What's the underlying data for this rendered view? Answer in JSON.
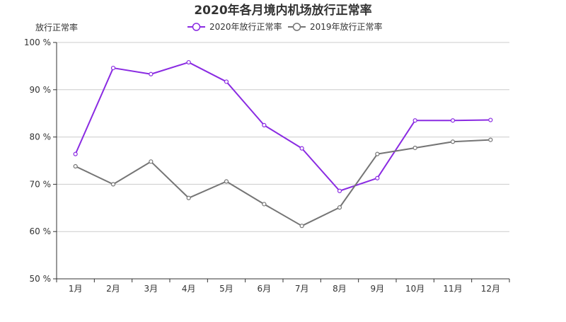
{
  "chart_data": {
    "type": "line",
    "title": "2020年各月境内机场放行正常率",
    "ylabel": "放行正常率",
    "xlabel": "",
    "categories": [
      "1月",
      "2月",
      "3月",
      "4月",
      "5月",
      "6月",
      "7月",
      "8月",
      "9月",
      "10月",
      "11月",
      "12月"
    ],
    "ylim": [
      50,
      100
    ],
    "yticks": [
      50,
      60,
      70,
      80,
      90,
      100
    ],
    "ytick_labels": [
      "50 %",
      "60 %",
      "70 %",
      "80 %",
      "90 %",
      "100 %"
    ],
    "grid": true,
    "legend_position": "top-center",
    "series": [
      {
        "name": "2020年放行正常率",
        "color": "#8a2be2",
        "values": [
          76.4,
          94.6,
          93.3,
          95.8,
          91.7,
          82.5,
          77.6,
          68.6,
          71.3,
          83.5,
          83.5,
          83.6
        ]
      },
      {
        "name": "2019年放行正常率",
        "color": "#757575",
        "values": [
          73.8,
          70.0,
          74.8,
          67.1,
          70.6,
          65.8,
          61.2,
          65.1,
          76.4,
          77.7,
          79.0,
          79.4
        ]
      }
    ]
  }
}
